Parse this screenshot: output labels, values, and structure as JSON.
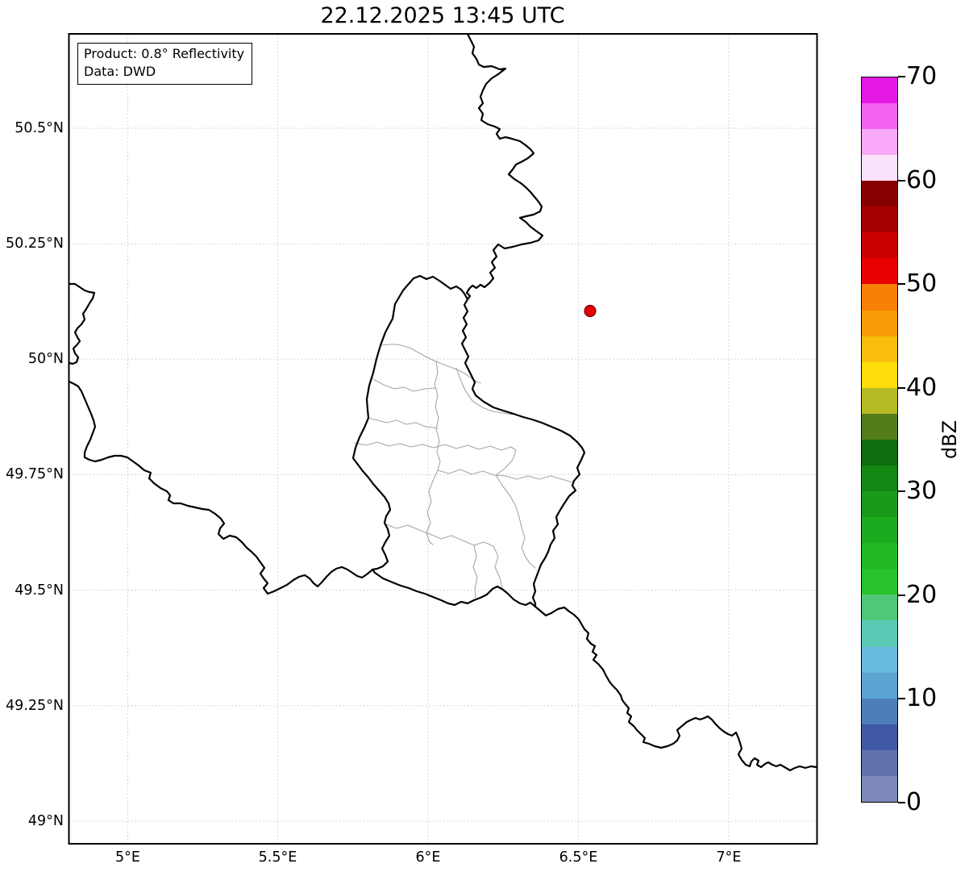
{
  "title": "22.12.2025 13:45 UTC",
  "annotation": {
    "product": "Product: 0.8° Reflectivity",
    "source": "Data: DWD"
  },
  "axes": {
    "x_ticks": [
      "5°E",
      "5.5°E",
      "6°E",
      "6.5°E",
      "7°E"
    ],
    "y_ticks": [
      "50.5°N",
      "50.25°N",
      "50°N",
      "49.75°N",
      "49.5°N",
      "49.25°N",
      "49°N"
    ]
  },
  "colorbar": {
    "label": "dBZ",
    "ticks": [
      "0",
      "10",
      "20",
      "30",
      "40",
      "50",
      "60",
      "70"
    ],
    "vmin": 0,
    "vmax": 70,
    "step": 2.5,
    "colors": [
      "#7c88b8",
      "#6272ac",
      "#4159a5",
      "#4c7fba",
      "#5ba4d2",
      "#68bade",
      "#5bcbb6",
      "#50c878",
      "#29c42d",
      "#21b822",
      "#1caa1e",
      "#199b1a",
      "#128712",
      "#0c6e0c",
      "#537c1a",
      "#b6bb24",
      "#fedd0a",
      "#f9bd0b",
      "#fa9c08",
      "#f98006",
      "#e80000",
      "#ca0000",
      "#a70000",
      "#860000",
      "#fce3fc",
      "#f8aaf8",
      "#f263f2",
      "#e418e4"
    ]
  },
  "map": {
    "marker": {
      "color": "#e40000"
    },
    "border_color": "#000000",
    "admin_border_color": "#a6a6a6",
    "grid_color": "#c9c9c9"
  }
}
